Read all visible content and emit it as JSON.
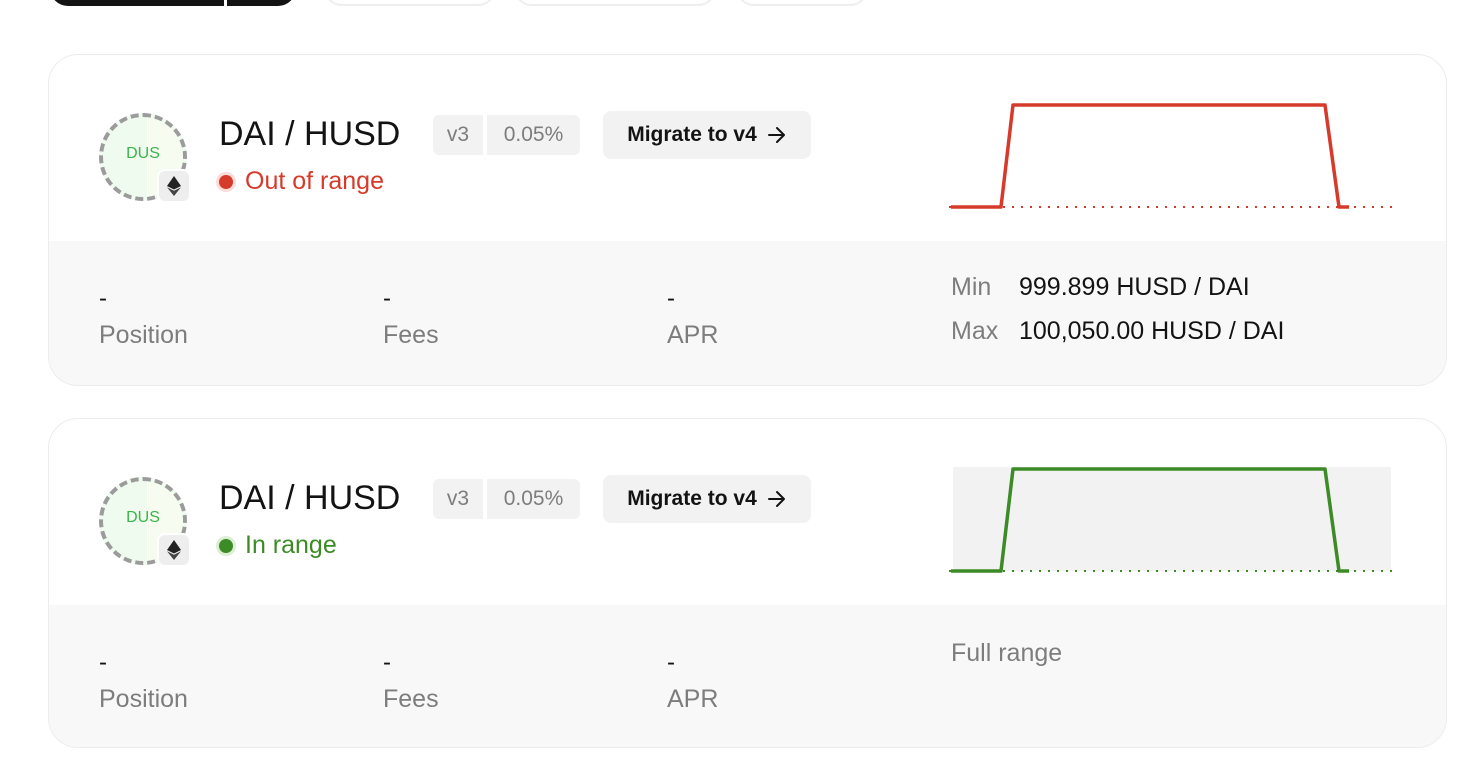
{
  "top_tabs": [
    {
      "label": ""
    },
    {
      "label": ""
    },
    {
      "label": ""
    },
    {
      "label": ""
    }
  ],
  "positions": [
    {
      "logo_text": "DUS",
      "pair": "DAI / HUSD",
      "version": "v3",
      "fee": "0.05%",
      "migrate_label": "Migrate to v4",
      "status": "Out of range",
      "status_color": "#d63a2a",
      "chart_shaded": false,
      "stats": {
        "position_value": "-",
        "position_label": "Position",
        "fees_value": "-",
        "fees_label": "Fees",
        "apr_value": "-",
        "apr_label": "APR"
      },
      "range": {
        "min_label": "Min",
        "min_value": "999.899 HUSD / DAI",
        "max_label": "Max",
        "max_value": "100,050.00 HUSD / DAI"
      }
    },
    {
      "logo_text": "DUS",
      "pair": "DAI / HUSD",
      "version": "v3",
      "fee": "0.05%",
      "migrate_label": "Migrate to v4",
      "status": "In range",
      "status_color": "#3d8b26",
      "chart_shaded": true,
      "stats": {
        "position_value": "-",
        "position_label": "Position",
        "fees_value": "-",
        "fees_label": "Fees",
        "apr_value": "-",
        "apr_label": "APR"
      },
      "range_text": "Full range"
    }
  ]
}
